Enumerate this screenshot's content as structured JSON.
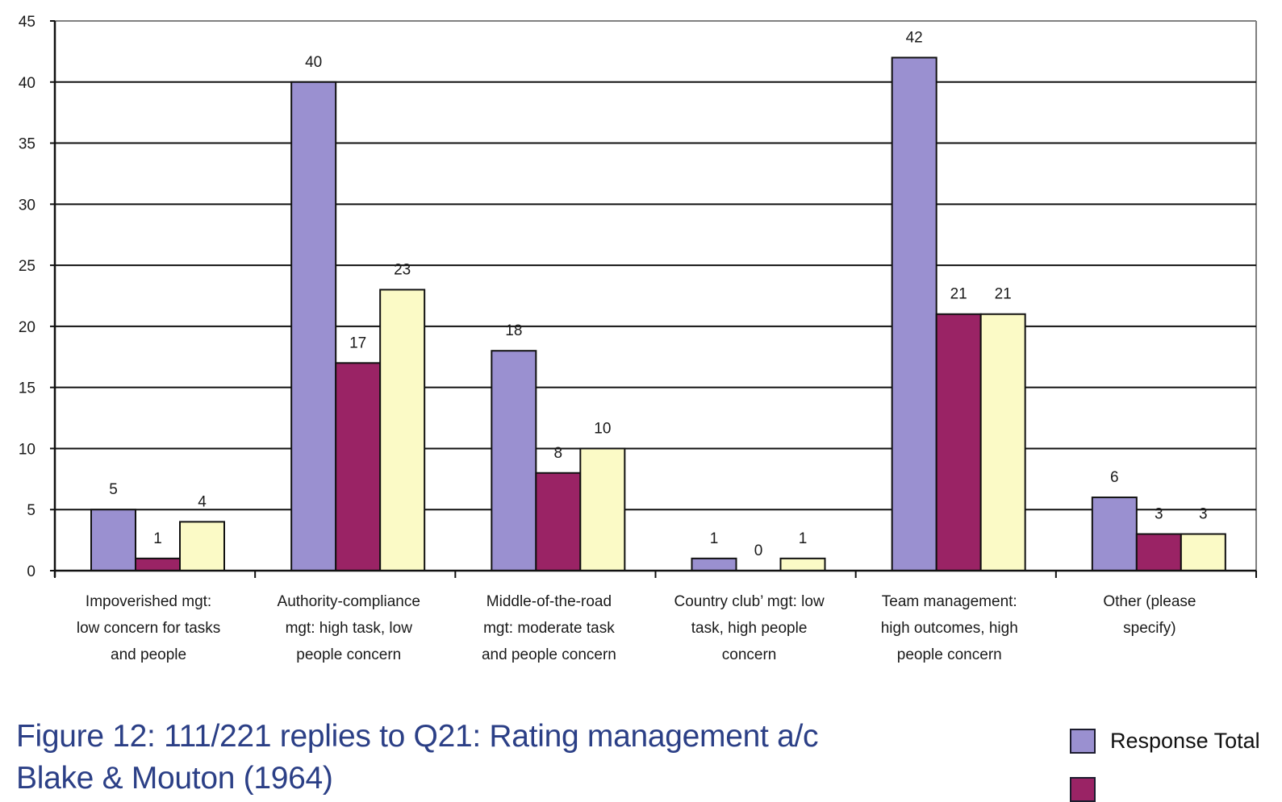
{
  "chart_data": {
    "type": "bar",
    "title": "",
    "xlabel": "",
    "ylabel": "",
    "ylim": [
      0,
      45
    ],
    "yticks": [
      0,
      5,
      10,
      15,
      20,
      25,
      30,
      35,
      40,
      45
    ],
    "grid": true,
    "legend_position": "bottom-right",
    "categories": [
      [
        "Impoverished mgt:",
        "low concern for tasks",
        "and people"
      ],
      [
        "Authority-compliance",
        "mgt: high task, low",
        "people concern"
      ],
      [
        "Middle-of-the-road",
        "mgt: moderate task",
        "and people concern"
      ],
      [
        "Country club’ mgt: low",
        "task, high people",
        "concern"
      ],
      [
        "Team management:",
        "high outcomes, high",
        "people concern"
      ],
      [
        "Other (please",
        "specify)"
      ]
    ],
    "series": [
      {
        "name": "Response Total",
        "color": "#9a90d0",
        "values": [
          5,
          40,
          18,
          1,
          42,
          6
        ]
      },
      {
        "name": "",
        "color": "#9a2365",
        "values": [
          1,
          17,
          8,
          0,
          21,
          3
        ]
      },
      {
        "name": "",
        "color": "#fbfac6",
        "values": [
          4,
          23,
          10,
          1,
          21,
          3
        ]
      }
    ]
  },
  "caption": {
    "line1": "Figure 12: 111/221 replies to Q21: Rating management a/c",
    "line2": "Blake & Mouton (1964)"
  },
  "legend": [
    {
      "label": "Response Total",
      "color": "#9a90d0"
    },
    {
      "label": "",
      "color": "#9a2365"
    }
  ]
}
